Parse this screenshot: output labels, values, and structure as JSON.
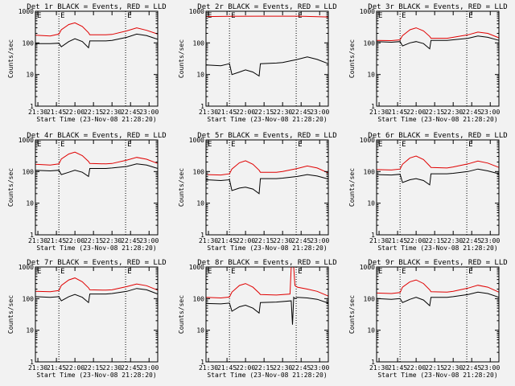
{
  "figure": {
    "background": "#f2f2f2",
    "event_color": "#000000",
    "lld_color": "#e00000",
    "ylabel": "Counts/sec",
    "xlabel": "Start Time (23-Nov-08 21:28:20)",
    "yticks": [
      "1",
      "10",
      "100",
      "1000"
    ],
    "xticks": [
      "21:30",
      "21:45",
      "22:00",
      "22:15",
      "22:30",
      "22:45",
      "23:00"
    ],
    "marker_label": "E"
  },
  "chart_data": [
    {
      "type": "line",
      "title": "Det 1r BLACK = Events, RED = LLD",
      "xlim": [
        "21:28",
        "23:07"
      ],
      "ylim": [
        1,
        1000
      ],
      "yscale": "log",
      "markers": [
        "21:28",
        "21:47",
        "22:41"
      ],
      "series": [
        {
          "name": "Events",
          "x": [
            "21:28",
            "21:40",
            "21:47",
            "21:49",
            "21:55",
            "22:00",
            "22:06",
            "22:11",
            "22:12",
            "22:25",
            "22:30",
            "22:42",
            "22:50",
            "22:58",
            "23:07"
          ],
          "y": [
            95,
            95,
            98,
            75,
            110,
            135,
            110,
            70,
            115,
            115,
            120,
            150,
            190,
            170,
            130
          ]
        },
        {
          "name": "LLD",
          "x": [
            "21:28",
            "21:40",
            "21:47",
            "21:49",
            "21:55",
            "22:00",
            "22:06",
            "22:11",
            "22:12",
            "22:25",
            "22:30",
            "22:42",
            "22:50",
            "22:58",
            "23:07"
          ],
          "y": [
            175,
            165,
            190,
            260,
            380,
            430,
            330,
            210,
            180,
            180,
            185,
            240,
            300,
            250,
            190
          ]
        }
      ]
    },
    {
      "type": "line",
      "title": "Det 2r BLACK = Events, RED = LLD",
      "xlim": [
        "21:28",
        "23:07"
      ],
      "ylim": [
        1,
        1000
      ],
      "yscale": "log",
      "markers": [
        "21:28",
        "21:47",
        "22:41"
      ],
      "series": [
        {
          "name": "Events",
          "x": [
            "21:28",
            "21:40",
            "21:47",
            "21:49",
            "21:55",
            "22:00",
            "22:06",
            "22:11",
            "22:12",
            "22:25",
            "22:30",
            "22:42",
            "22:50",
            "22:58",
            "23:07"
          ],
          "y": [
            20,
            19,
            22,
            10,
            12,
            14,
            12,
            9,
            22,
            23,
            24,
            30,
            36,
            30,
            22
          ]
        },
        {
          "name": "LLD",
          "x": [
            "21:28",
            "21:47",
            "22:11",
            "22:42",
            "23:07"
          ],
          "y": [
            680,
            690,
            700,
            700,
            660
          ]
        }
      ]
    },
    {
      "type": "line",
      "title": "Det 3r BLACK = Events, RED = LLD",
      "xlim": [
        "21:28",
        "23:07"
      ],
      "ylim": [
        1,
        1000
      ],
      "yscale": "log",
      "markers": [
        "21:28",
        "21:47",
        "22:41"
      ],
      "series": [
        {
          "name": "Events",
          "x": [
            "21:28",
            "21:40",
            "21:47",
            "21:49",
            "21:55",
            "22:00",
            "22:06",
            "22:11",
            "22:12",
            "22:25",
            "22:30",
            "22:42",
            "22:50",
            "22:58",
            "23:07"
          ],
          "y": [
            110,
            105,
            110,
            80,
            100,
            110,
            95,
            65,
            120,
            120,
            125,
            140,
            165,
            150,
            120
          ]
        },
        {
          "name": "LLD",
          "x": [
            "21:28",
            "21:40",
            "21:47",
            "21:49",
            "21:55",
            "22:00",
            "22:06",
            "22:11",
            "22:12",
            "22:25",
            "22:30",
            "22:42",
            "22:50",
            "22:58",
            "23:07"
          ],
          "y": [
            120,
            118,
            125,
            170,
            260,
            300,
            240,
            160,
            140,
            140,
            150,
            180,
            220,
            200,
            145
          ]
        }
      ]
    },
    {
      "type": "line",
      "title": "Det 4r BLACK = Events, RED = LLD",
      "xlim": [
        "21:28",
        "23:07"
      ],
      "ylim": [
        1,
        1000
      ],
      "yscale": "log",
      "markers": [
        "21:28",
        "21:47",
        "22:41"
      ],
      "series": [
        {
          "name": "Events",
          "x": [
            "21:28",
            "21:40",
            "21:47",
            "21:49",
            "21:55",
            "22:00",
            "22:06",
            "22:11",
            "22:12",
            "22:25",
            "22:30",
            "22:42",
            "22:50",
            "22:58",
            "23:07"
          ],
          "y": [
            110,
            105,
            110,
            80,
            95,
            110,
            95,
            70,
            125,
            125,
            130,
            145,
            175,
            160,
            125
          ]
        },
        {
          "name": "LLD",
          "x": [
            "21:28",
            "21:40",
            "21:47",
            "21:49",
            "21:55",
            "22:00",
            "22:06",
            "22:11",
            "22:12",
            "22:25",
            "22:30",
            "22:42",
            "22:50",
            "22:58",
            "23:07"
          ],
          "y": [
            170,
            160,
            175,
            250,
            360,
            410,
            320,
            210,
            180,
            175,
            180,
            230,
            280,
            245,
            180
          ]
        }
      ]
    },
    {
      "type": "line",
      "title": "Det 5r BLACK = Events, RED = LLD",
      "xlim": [
        "21:28",
        "23:07"
      ],
      "ylim": [
        1,
        1000
      ],
      "yscale": "log",
      "markers": [
        "21:28",
        "21:47",
        "22:41"
      ],
      "series": [
        {
          "name": "Events",
          "x": [
            "21:28",
            "21:40",
            "21:47",
            "21:49",
            "21:55",
            "22:00",
            "22:06",
            "22:11",
            "22:12",
            "22:25",
            "22:30",
            "22:42",
            "22:50",
            "22:58",
            "23:07"
          ],
          "y": [
            55,
            52,
            55,
            25,
            30,
            32,
            28,
            20,
            60,
            60,
            62,
            70,
            80,
            72,
            58
          ]
        },
        {
          "name": "LLD",
          "x": [
            "21:28",
            "21:40",
            "21:47",
            "21:49",
            "21:55",
            "22:00",
            "22:06",
            "22:11",
            "22:12",
            "22:25",
            "22:30",
            "22:42",
            "22:50",
            "22:58",
            "23:07"
          ],
          "y": [
            80,
            78,
            85,
            120,
            190,
            220,
            170,
            110,
            95,
            95,
            100,
            125,
            150,
            130,
            90
          ]
        }
      ]
    },
    {
      "type": "line",
      "title": "Det 6r BLACK = Events, RED = LLD",
      "xlim": [
        "21:28",
        "23:07"
      ],
      "ylim": [
        1,
        1000
      ],
      "yscale": "log",
      "markers": [
        "21:28",
        "21:47",
        "22:41"
      ],
      "series": [
        {
          "name": "Events",
          "x": [
            "21:28",
            "21:40",
            "21:47",
            "21:49",
            "21:55",
            "22:00",
            "22:06",
            "22:11",
            "22:12",
            "22:25",
            "22:30",
            "22:42",
            "22:50",
            "22:58",
            "23:07"
          ],
          "y": [
            80,
            78,
            82,
            45,
            55,
            60,
            52,
            38,
            85,
            85,
            88,
            100,
            120,
            105,
            85
          ]
        },
        {
          "name": "LLD",
          "x": [
            "21:28",
            "21:40",
            "21:47",
            "21:49",
            "21:55",
            "22:00",
            "22:06",
            "22:11",
            "22:12",
            "22:25",
            "22:30",
            "22:42",
            "22:50",
            "22:58",
            "23:07"
          ],
          "y": [
            115,
            112,
            120,
            170,
            270,
            310,
            240,
            150,
            135,
            130,
            140,
            175,
            215,
            185,
            135
          ]
        }
      ]
    },
    {
      "type": "line",
      "title": "Det 7r BLACK = Events, RED = LLD",
      "xlim": [
        "21:28",
        "23:07"
      ],
      "ylim": [
        1,
        1000
      ],
      "yscale": "log",
      "markers": [
        "21:28",
        "21:47",
        "22:41"
      ],
      "series": [
        {
          "name": "Events",
          "x": [
            "21:28",
            "21:40",
            "21:47",
            "21:49",
            "21:55",
            "22:00",
            "22:06",
            "22:11",
            "22:12",
            "22:25",
            "22:30",
            "22:42",
            "22:50",
            "22:58",
            "23:07"
          ],
          "y": [
            115,
            110,
            115,
            85,
            115,
            135,
            110,
            75,
            140,
            140,
            145,
            170,
            210,
            190,
            140
          ]
        },
        {
          "name": "LLD",
          "x": [
            "21:28",
            "21:40",
            "21:47",
            "21:49",
            "21:55",
            "22:00",
            "22:06",
            "22:11",
            "22:12",
            "22:25",
            "22:30",
            "22:42",
            "22:50",
            "22:58",
            "23:07"
          ],
          "y": [
            170,
            165,
            180,
            260,
            390,
            450,
            340,
            220,
            190,
            185,
            190,
            240,
            290,
            255,
            185
          ]
        }
      ]
    },
    {
      "type": "line",
      "title": "Det 8r BLACK = Events, RED = LLD",
      "xlim": [
        "21:28",
        "23:07"
      ],
      "ylim": [
        1,
        1000
      ],
      "yscale": "log",
      "markers": [
        "21:28",
        "21:47",
        "22:41"
      ],
      "series": [
        {
          "name": "Events",
          "x": [
            "21:28",
            "21:40",
            "21:47",
            "21:49",
            "21:55",
            "22:00",
            "22:06",
            "22:11",
            "22:12",
            "22:25",
            "22:37",
            "22:38",
            "22:39",
            "22:40",
            "22:42",
            "22:50",
            "22:58",
            "23:07"
          ],
          "y": [
            70,
            68,
            72,
            40,
            55,
            62,
            50,
            35,
            75,
            78,
            85,
            15,
            110,
            100,
            110,
            105,
            95,
            72
          ]
        },
        {
          "name": "LLD",
          "x": [
            "21:28",
            "21:40",
            "21:47",
            "21:49",
            "21:55",
            "22:00",
            "22:06",
            "22:11",
            "22:12",
            "22:25",
            "22:36",
            "22:37",
            "22:39",
            "22:40",
            "22:42",
            "22:50",
            "22:58",
            "23:07"
          ],
          "y": [
            110,
            105,
            112,
            160,
            260,
            300,
            230,
            150,
            135,
            130,
            140,
            1000,
            1000,
            260,
            230,
            200,
            170,
            120
          ]
        }
      ]
    },
    {
      "type": "line",
      "title": "Det 9r BLACK = Events, RED = LLD",
      "xlim": [
        "21:28",
        "23:07"
      ],
      "ylim": [
        1,
        1000
      ],
      "yscale": "log",
      "markers": [
        "21:28",
        "21:47",
        "22:41"
      ],
      "series": [
        {
          "name": "Events",
          "x": [
            "21:28",
            "21:40",
            "21:47",
            "21:49",
            "21:55",
            "22:00",
            "22:06",
            "22:11",
            "22:12",
            "22:25",
            "22:30",
            "22:42",
            "22:50",
            "22:58",
            "23:07"
          ],
          "y": [
            100,
            95,
            100,
            75,
            95,
            110,
            90,
            60,
            110,
            110,
            115,
            135,
            160,
            145,
            110
          ]
        },
        {
          "name": "LLD",
          "x": [
            "21:28",
            "21:40",
            "21:47",
            "21:49",
            "21:55",
            "22:00",
            "22:06",
            "22:11",
            "22:12",
            "22:25",
            "22:30",
            "22:42",
            "22:50",
            "22:58",
            "23:07"
          ],
          "y": [
            150,
            145,
            155,
            230,
            340,
            390,
            300,
            190,
            165,
            160,
            170,
            215,
            265,
            230,
            160
          ]
        }
      ]
    }
  ]
}
